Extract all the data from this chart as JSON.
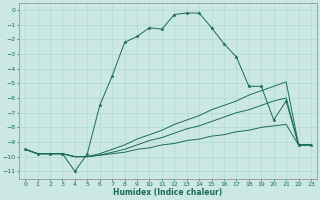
{
  "xlabel": "Humidex (Indice chaleur)",
  "bg_color": "#cce8e4",
  "grid_color": "#b0d8d0",
  "line_color": "#1a6b5a",
  "xlim": [
    -0.5,
    23.5
  ],
  "ylim": [
    -11.5,
    0.5
  ],
  "yticks": [
    0,
    -1,
    -2,
    -3,
    -4,
    -5,
    -6,
    -7,
    -8,
    -9,
    -10,
    -11
  ],
  "xticks": [
    0,
    1,
    2,
    3,
    4,
    5,
    6,
    7,
    8,
    9,
    10,
    11,
    12,
    13,
    14,
    15,
    16,
    17,
    18,
    19,
    20,
    21,
    22,
    23
  ],
  "line1_x": [
    0,
    1,
    2,
    3,
    4,
    5,
    6,
    7,
    8,
    9,
    10,
    11,
    12,
    13,
    14,
    15,
    16,
    17,
    18,
    19,
    20,
    21,
    22,
    23
  ],
  "line1_y": [
    -9.5,
    -9.8,
    -9.8,
    -9.8,
    -11.0,
    -9.8,
    -6.5,
    -4.5,
    -2.2,
    -1.8,
    -1.2,
    -1.3,
    -0.3,
    -0.2,
    -0.2,
    -1.2,
    -2.3,
    -3.2,
    -5.2,
    -5.2,
    -7.5,
    -6.2,
    -9.2,
    -9.2
  ],
  "line2_x": [
    0,
    1,
    2,
    3,
    4,
    5,
    6,
    7,
    8,
    9,
    10,
    11,
    12,
    13,
    14,
    15,
    16,
    17,
    18,
    19,
    20,
    21,
    22,
    23
  ],
  "line2_y": [
    -9.5,
    -9.8,
    -9.8,
    -9.8,
    -10.0,
    -10.0,
    -9.8,
    -9.5,
    -9.2,
    -8.8,
    -8.5,
    -8.2,
    -7.8,
    -7.5,
    -7.2,
    -6.8,
    -6.5,
    -6.2,
    -5.8,
    -5.5,
    -5.2,
    -4.9,
    -9.2,
    -9.2
  ],
  "line3_x": [
    0,
    1,
    2,
    3,
    4,
    5,
    6,
    7,
    8,
    9,
    10,
    11,
    12,
    13,
    14,
    15,
    16,
    17,
    18,
    19,
    20,
    21,
    22,
    23
  ],
  "line3_y": [
    -9.5,
    -9.8,
    -9.8,
    -9.8,
    -10.0,
    -10.0,
    -9.9,
    -9.7,
    -9.5,
    -9.2,
    -8.9,
    -8.7,
    -8.4,
    -8.1,
    -7.9,
    -7.6,
    -7.3,
    -7.0,
    -6.8,
    -6.5,
    -6.2,
    -6.0,
    -9.2,
    -9.2
  ],
  "line4_x": [
    0,
    1,
    2,
    3,
    4,
    5,
    6,
    7,
    8,
    9,
    10,
    11,
    12,
    13,
    14,
    15,
    16,
    17,
    18,
    19,
    20,
    21,
    22,
    23
  ],
  "line4_y": [
    -9.5,
    -9.8,
    -9.8,
    -9.8,
    -10.0,
    -10.0,
    -9.9,
    -9.8,
    -9.7,
    -9.5,
    -9.4,
    -9.2,
    -9.1,
    -8.9,
    -8.8,
    -8.6,
    -8.5,
    -8.3,
    -8.2,
    -8.0,
    -7.9,
    -7.8,
    -9.2,
    -9.2
  ]
}
